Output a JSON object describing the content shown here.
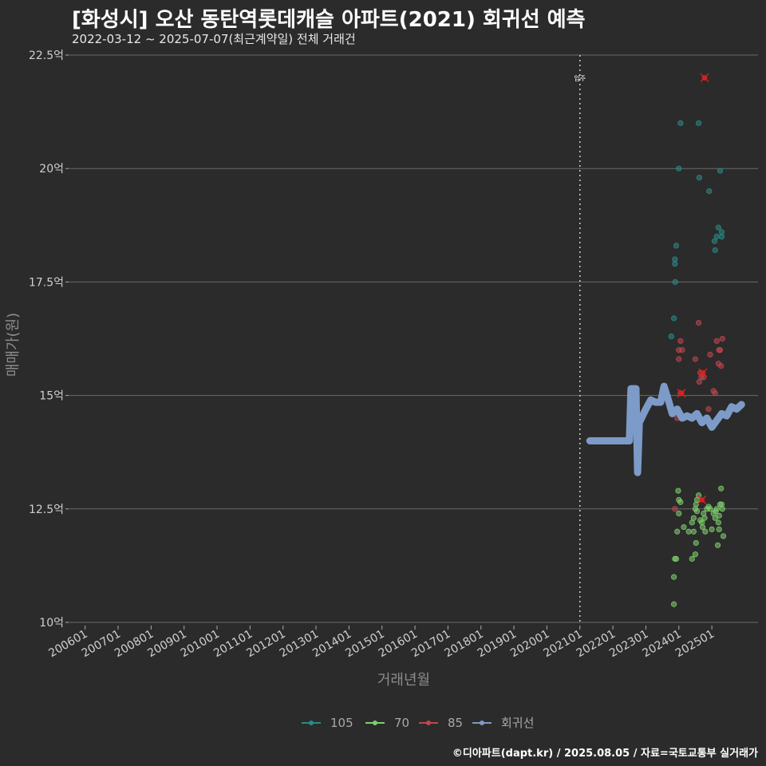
{
  "header": {
    "title": "[화성시] 오산 동탄역롯데캐슬 아파트(2021) 회귀선 예측",
    "subtitle": "2022-03-12 ~ 2025-07-07(최근계약일) 전체 거래건"
  },
  "footer": {
    "credit": "©디아파트(dapt.kr) / 2025.08.05 / 자료=국토교통부 실거래가"
  },
  "colors": {
    "s105": "#2a8a88",
    "s70": "#7fcf6e",
    "s85": "#c0464e",
    "regression": "#7d9bc8",
    "outlier": "#e02020"
  },
  "chart_data": {
    "type": "scatter",
    "title": "[화성시] 오산 동탄역롯데캐슬 아파트(2021) 회귀선 예측",
    "xlabel": "거래년월",
    "ylabel": "매매가(원)",
    "ylim": [
      10,
      22.5
    ],
    "xlim": [
      2005.5,
      2026.4
    ],
    "y_ticks": [
      10,
      12.5,
      15,
      17.5,
      20,
      22.5
    ],
    "y_tick_labels": [
      "10억",
      "12.5억",
      "15억",
      "17.5억",
      "20억",
      "22.5억"
    ],
    "x_ticks": [
      2006,
      2007,
      2008,
      2009,
      2010,
      2011,
      2012,
      2013,
      2014,
      2015,
      2016,
      2017,
      2018,
      2019,
      2020,
      2021,
      2022,
      2023,
      2024,
      2025
    ],
    "x_tick_labels": [
      "200601",
      "200701",
      "200801",
      "200901",
      "201001",
      "201101",
      "201201",
      "201301",
      "201401",
      "201501",
      "201601",
      "201701",
      "201801",
      "201901",
      "202001",
      "202101",
      "202201",
      "202301",
      "202401",
      "202501"
    ],
    "vline": {
      "x": 2021.0,
      "label": "입주"
    },
    "legend": [
      "105",
      "70",
      "85",
      "회귀선"
    ],
    "series": [
      {
        "name": "105",
        "points": [
          [
            2023.77,
            16.3
          ],
          [
            2023.85,
            16.7
          ],
          [
            2023.88,
            17.9
          ],
          [
            2023.88,
            18.0
          ],
          [
            2023.89,
            17.5
          ],
          [
            2023.92,
            18.3
          ],
          [
            2024.0,
            20.0
          ],
          [
            2024.05,
            21.0
          ],
          [
            2024.6,
            21.0
          ],
          [
            2024.62,
            19.8
          ],
          [
            2024.92,
            19.5
          ],
          [
            2025.08,
            18.4
          ],
          [
            2025.15,
            18.5
          ],
          [
            2025.2,
            18.7
          ],
          [
            2025.3,
            18.5
          ],
          [
            2025.3,
            18.6
          ],
          [
            2025.1,
            18.2
          ],
          [
            2025.25,
            19.95
          ]
        ]
      },
      {
        "name": "70",
        "points": [
          [
            2023.85,
            11.0
          ],
          [
            2023.85,
            10.4
          ],
          [
            2023.88,
            11.4
          ],
          [
            2023.92,
            11.4
          ],
          [
            2023.95,
            12.0
          ],
          [
            2023.98,
            12.9
          ],
          [
            2024.0,
            12.7
          ],
          [
            2024.05,
            12.65
          ],
          [
            2024.0,
            12.4
          ],
          [
            2024.15,
            12.1
          ],
          [
            2024.3,
            12.0
          ],
          [
            2024.4,
            12.2
          ],
          [
            2024.45,
            12.3
          ],
          [
            2024.5,
            12.5
          ],
          [
            2024.52,
            12.6
          ],
          [
            2024.55,
            12.7
          ],
          [
            2024.45,
            12.0
          ],
          [
            2024.4,
            11.4
          ],
          [
            2024.5,
            11.5
          ],
          [
            2024.6,
            12.8
          ],
          [
            2024.65,
            12.25
          ],
          [
            2024.7,
            12.2
          ],
          [
            2024.72,
            12.1
          ],
          [
            2024.75,
            12.4
          ],
          [
            2024.78,
            12.3
          ],
          [
            2024.8,
            12.0
          ],
          [
            2024.85,
            12.5
          ],
          [
            2024.9,
            12.55
          ],
          [
            2024.95,
            12.5
          ],
          [
            2025.0,
            12.05
          ],
          [
            2025.05,
            12.4
          ],
          [
            2025.1,
            12.3
          ],
          [
            2025.12,
            12.45
          ],
          [
            2025.15,
            12.5
          ],
          [
            2025.2,
            12.2
          ],
          [
            2025.22,
            12.35
          ],
          [
            2025.25,
            12.6
          ],
          [
            2025.3,
            12.6
          ],
          [
            2025.28,
            12.95
          ],
          [
            2025.32,
            12.5
          ],
          [
            2025.18,
            11.7
          ],
          [
            2025.35,
            11.9
          ],
          [
            2025.22,
            12.05
          ],
          [
            2024.52,
            11.75
          ],
          [
            2024.55,
            12.45
          ]
        ]
      },
      {
        "name": "85",
        "points": [
          [
            2023.88,
            12.5
          ],
          [
            2023.95,
            14.5
          ],
          [
            2024.0,
            15.8
          ],
          [
            2024.0,
            16.0
          ],
          [
            2024.05,
            16.2
          ],
          [
            2024.1,
            16.0
          ],
          [
            2024.5,
            15.8
          ],
          [
            2024.6,
            16.6
          ],
          [
            2024.62,
            15.3
          ],
          [
            2024.65,
            15.5
          ],
          [
            2024.68,
            15.4
          ],
          [
            2024.75,
            15.4
          ],
          [
            2024.9,
            14.7
          ],
          [
            2024.95,
            15.9
          ],
          [
            2025.05,
            15.1
          ],
          [
            2025.1,
            15.05
          ],
          [
            2025.15,
            16.2
          ],
          [
            2025.2,
            15.7
          ],
          [
            2025.22,
            16.0
          ],
          [
            2025.25,
            16.0
          ],
          [
            2025.28,
            15.65
          ],
          [
            2025.32,
            16.25
          ],
          [
            2024.05,
            15.05
          ]
        ]
      }
    ],
    "outliers": [
      [
        2024.78,
        22.0
      ],
      [
        2024.08,
        15.05
      ],
      [
        2024.73,
        15.5
      ],
      [
        2024.7,
        12.7
      ]
    ],
    "regression": [
      [
        2021.3,
        14.0
      ],
      [
        2022.5,
        14.0
      ],
      [
        2022.55,
        15.15
      ],
      [
        2022.7,
        15.15
      ],
      [
        2022.75,
        13.3
      ],
      [
        2022.8,
        14.4
      ],
      [
        2023.0,
        14.7
      ],
      [
        2023.15,
        14.9
      ],
      [
        2023.3,
        14.85
      ],
      [
        2023.45,
        14.85
      ],
      [
        2023.55,
        15.2
      ],
      [
        2023.68,
        14.9
      ],
      [
        2023.8,
        14.6
      ],
      [
        2023.95,
        14.7
      ],
      [
        2024.1,
        14.5
      ],
      [
        2024.25,
        14.55
      ],
      [
        2024.4,
        14.5
      ],
      [
        2024.55,
        14.6
      ],
      [
        2024.7,
        14.4
      ],
      [
        2024.85,
        14.5
      ],
      [
        2025.0,
        14.3
      ],
      [
        2025.15,
        14.45
      ],
      [
        2025.3,
        14.6
      ],
      [
        2025.45,
        14.55
      ],
      [
        2025.6,
        14.75
      ],
      [
        2025.75,
        14.7
      ],
      [
        2025.9,
        14.8
      ]
    ]
  }
}
